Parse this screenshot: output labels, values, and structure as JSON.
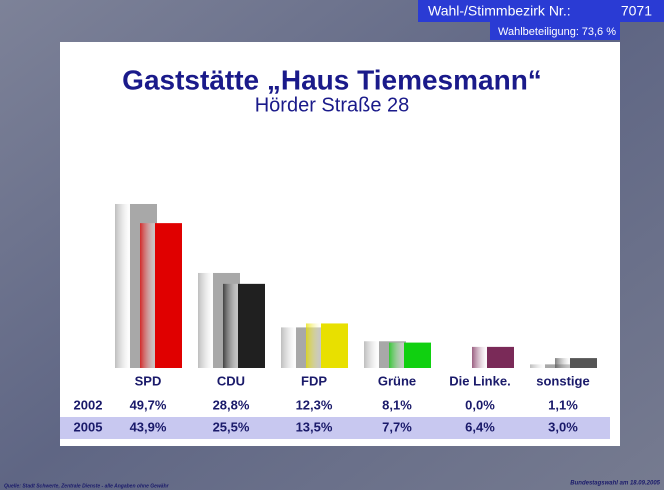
{
  "header": {
    "district_label": "Wahl-/Stimmbezirk Nr.:",
    "district_number": "7071",
    "turnout_label": "Wahlbeteiligung:",
    "turnout_value": "73,6 %"
  },
  "footer": {
    "source": "Quelle: Stadt Schwerte, Zentrale Dienste - alle Angaben ohne Gewähr",
    "election": "Bundestagswahl am 18.09.2005"
  },
  "chart_data": {
    "type": "bar",
    "title": "Gaststätte „Haus Tiemesmann“",
    "subtitle": "Hörder Straße 28",
    "categories": [
      "SPD",
      "CDU",
      "FDP",
      "Grüne",
      "Die Linke.",
      "sonstige"
    ],
    "series": [
      {
        "name": "2002",
        "colors": [
          "#a8a8a8",
          "#a8a8a8",
          "#a8a8a8",
          "#a8a8a8",
          "#a8a8a8",
          "#a8a8a8"
        ],
        "values": [
          49.7,
          28.8,
          12.3,
          8.1,
          0.0,
          1.1
        ],
        "value_labels": [
          "49,7%",
          "28,8%",
          "12,3%",
          "8,1%",
          "0,0%",
          "1,1%"
        ]
      },
      {
        "name": "2005",
        "colors": [
          "#e00000",
          "#202020",
          "#e8e000",
          "#10d010",
          "#7a2a58",
          "#555555"
        ],
        "values": [
          43.9,
          25.5,
          13.5,
          7.7,
          6.4,
          3.0
        ],
        "value_labels": [
          "43,9%",
          "25,5%",
          "13,5%",
          "7,7%",
          "6,4%",
          "3,0%"
        ]
      }
    ]
  }
}
